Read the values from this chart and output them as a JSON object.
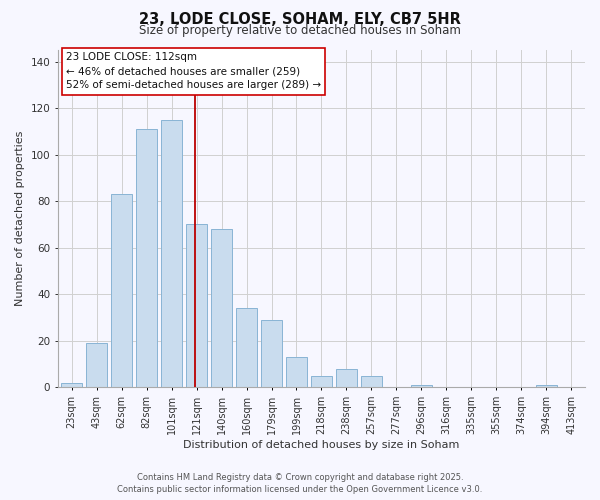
{
  "title": "23, LODE CLOSE, SOHAM, ELY, CB7 5HR",
  "subtitle": "Size of property relative to detached houses in Soham",
  "bar_categories": [
    "23sqm",
    "43sqm",
    "62sqm",
    "82sqm",
    "101sqm",
    "121sqm",
    "140sqm",
    "160sqm",
    "179sqm",
    "199sqm",
    "218sqm",
    "238sqm",
    "257sqm",
    "277sqm",
    "296sqm",
    "316sqm",
    "335sqm",
    "355sqm",
    "374sqm",
    "394sqm",
    "413sqm"
  ],
  "bar_values": [
    2,
    19,
    83,
    111,
    115,
    70,
    68,
    34,
    29,
    13,
    5,
    8,
    5,
    0,
    1,
    0,
    0,
    0,
    0,
    1,
    0
  ],
  "bar_color": "#c9dcee",
  "bar_edge_color": "#89b4d4",
  "ylabel": "Number of detached properties",
  "xlabel": "Distribution of detached houses by size in Soham",
  "ylim": [
    0,
    145
  ],
  "yticks": [
    0,
    20,
    40,
    60,
    80,
    100,
    120,
    140
  ],
  "vline_index": 5.0,
  "vline_color": "#bb0000",
  "annotation_line1": "23 LODE CLOSE: 112sqm",
  "annotation_line2": "← 46% of detached houses are smaller (259)",
  "annotation_line3": "52% of semi-detached houses are larger (289) →",
  "footer1": "Contains HM Land Registry data © Crown copyright and database right 2025.",
  "footer2": "Contains public sector information licensed under the Open Government Licence v3.0.",
  "background_color": "#f7f7ff",
  "grid_color": "#d0d0d0"
}
